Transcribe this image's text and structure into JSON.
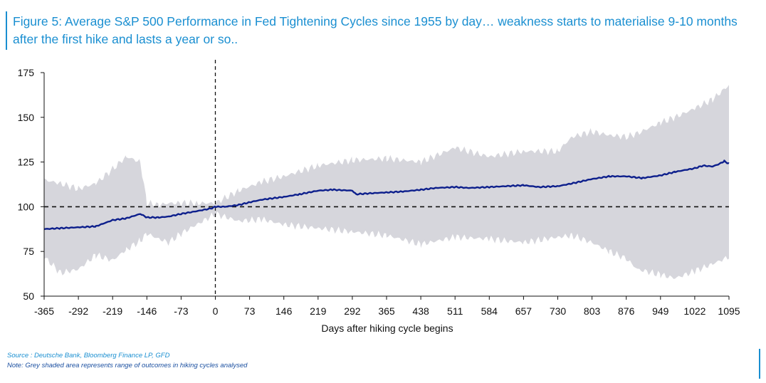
{
  "title": "Figure 5: Average S&P 500 Performance in Fed Tightening Cycles since 1955 by day… weakness starts to materialise 9-10 months after the first hike and lasts a year or so..",
  "source": "Source : Deutsche Bank, Bloomberg Finance LP, GFD",
  "note": "Note: Grey shaded area represents range of outcomes in hiking cycles analysed",
  "colors": {
    "title": "#1a8fd1",
    "line": "#0d1f8c",
    "band": "#d6d6dc",
    "reference": "#111111"
  },
  "chart_data": {
    "type": "area",
    "xlabel": "Days after hiking cycle begins",
    "ylabel": "",
    "xlim": [
      -365,
      1095
    ],
    "ylim": [
      50,
      175
    ],
    "xticks": [
      -365,
      -292,
      -219,
      -146,
      -73,
      0,
      73,
      146,
      219,
      292,
      365,
      438,
      511,
      584,
      657,
      730,
      803,
      876,
      949,
      1022,
      1095
    ],
    "yticks": [
      50,
      75,
      100,
      125,
      150,
      175
    ],
    "reference_lines": [
      {
        "axis": "y",
        "value": 100,
        "style": "dashed"
      },
      {
        "axis": "x",
        "value": 0,
        "style": "dashed"
      }
    ],
    "grid": false,
    "series": [
      {
        "kind": "line",
        "x": [
          -365,
          -330,
          -292,
          -255,
          -219,
          -190,
          -160,
          -146,
          -120,
          -100,
          -73,
          -40,
          -10,
          0,
          20,
          50,
          73,
          100,
          146,
          180,
          219,
          250,
          292,
          300,
          330,
          365,
          400,
          438,
          470,
          511,
          540,
          584,
          620,
          657,
          690,
          730,
          760,
          803,
          840,
          876,
          910,
          949,
          980,
          1022,
          1040,
          1060,
          1075,
          1085,
          1095
        ],
        "y": [
          87.5,
          88,
          88.5,
          89,
          92.5,
          93.5,
          96,
          94,
          94,
          94.5,
          96,
          97.5,
          99,
          100,
          100,
          101,
          102.5,
          104,
          105.5,
          107,
          109,
          109.5,
          109,
          107,
          107.5,
          108,
          108.5,
          109.5,
          110.5,
          111,
          110.5,
          111,
          111.5,
          112,
          111,
          111.5,
          113,
          115.5,
          117,
          117,
          116,
          117.5,
          119.5,
          121.5,
          123,
          122.5,
          124,
          125.5,
          124
        ]
      },
      {
        "kind": "band",
        "x": [
          -365,
          -330,
          -292,
          -255,
          -219,
          -190,
          -160,
          -146,
          -120,
          -100,
          -73,
          -40,
          0,
          50,
          100,
          146,
          219,
          292,
          365,
          438,
          511,
          584,
          657,
          730,
          760,
          803,
          840,
          876,
          900,
          949,
          980,
          1022,
          1060,
          1095
        ],
        "upper": [
          115,
          113,
          110,
          113,
          121,
          128,
          125,
          102,
          101,
          102,
          102,
          102,
          102,
          109,
          114,
          117,
          123,
          126,
          127,
          125,
          133,
          128,
          131,
          131,
          139,
          142,
          140,
          139,
          141,
          147,
          150,
          155,
          160,
          168
        ],
        "lower": [
          72,
          63,
          65,
          73,
          70,
          76,
          81,
          85,
          82,
          80,
          85,
          90,
          96,
          92,
          93,
          90,
          88,
          86,
          84,
          79,
          83,
          82,
          80,
          83,
          84,
          80,
          75,
          71,
          65,
          62,
          60,
          64,
          68,
          72
        ]
      }
    ]
  }
}
